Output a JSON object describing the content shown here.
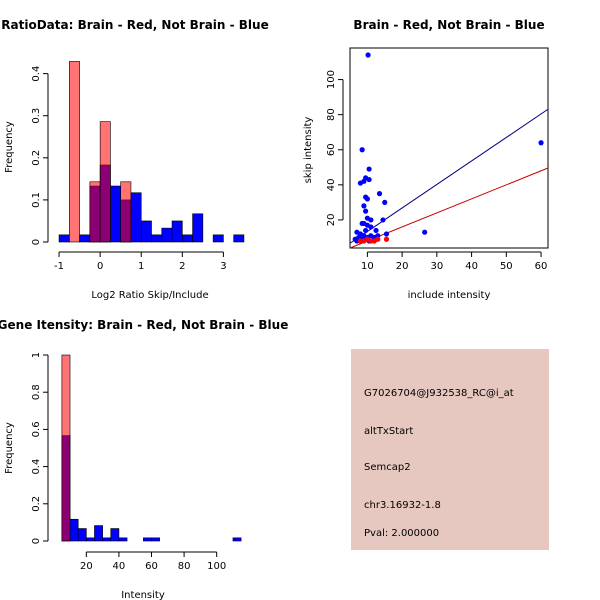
{
  "chart_data": [
    {
      "type": "histogram",
      "title": "RatioData: Brain - Red, Not Brain - Blue",
      "xlabel": "Log2 Ratio Skip/Include",
      "ylabel": "Frequency",
      "xlim": [
        -1.05,
        3.55
      ],
      "ylim": [
        0,
        0.43
      ],
      "xticks": [
        -1,
        0,
        1,
        2,
        3
      ],
      "yticks": [
        0.0,
        0.1,
        0.2,
        0.3,
        0.4
      ],
      "bin_width": 0.25,
      "series": [
        {
          "name": "Not Brain",
          "color": "#0000ff",
          "bins": [
            [
              -1.0,
              0.017
            ],
            [
              -0.5,
              0.017
            ],
            [
              -0.25,
              0.133
            ],
            [
              0.0,
              0.183
            ],
            [
              0.25,
              0.133
            ],
            [
              0.5,
              0.1
            ],
            [
              0.75,
              0.117
            ],
            [
              1.0,
              0.05
            ],
            [
              1.25,
              0.017
            ],
            [
              1.5,
              0.033
            ],
            [
              1.75,
              0.05
            ],
            [
              2.0,
              0.017
            ],
            [
              2.25,
              0.067
            ],
            [
              2.5,
              0.0
            ],
            [
              2.75,
              0.017
            ],
            [
              3.0,
              0.0
            ],
            [
              3.25,
              0.017
            ]
          ]
        },
        {
          "name": "Brain",
          "color": "#ff0000",
          "bins": [
            [
              -0.75,
              0.429
            ],
            [
              -0.25,
              0.143
            ],
            [
              0.0,
              0.286
            ],
            [
              0.5,
              0.143
            ]
          ]
        }
      ]
    },
    {
      "type": "scatter",
      "title": "Brain - Red, Not Brain - Blue",
      "xlabel": "include intensity",
      "ylabel": "skip intensity",
      "xlim": [
        5,
        62
      ],
      "ylim": [
        4,
        118
      ],
      "xticks": [
        10,
        20,
        30,
        40,
        50,
        60
      ],
      "yticks": [
        20,
        40,
        60,
        80,
        100
      ],
      "lines": [
        {
          "name": "Not Brain fit",
          "color": "#000080",
          "slope": 1.34,
          "intercept": 0
        },
        {
          "name": "Brain fit",
          "color": "#cc0000",
          "slope": 0.8,
          "intercept": 0
        }
      ],
      "series": [
        {
          "name": "Not Brain",
          "color": "#0000ff",
          "points": [
            [
              10.2,
              114
            ],
            [
              60,
              64
            ],
            [
              8.5,
              60
            ],
            [
              10.5,
              49
            ],
            [
              9.5,
              44
            ],
            [
              10.5,
              43
            ],
            [
              8,
              41
            ],
            [
              9,
              42
            ],
            [
              13.5,
              35
            ],
            [
              9.5,
              33
            ],
            [
              10,
              32
            ],
            [
              15,
              30
            ],
            [
              9,
              28
            ],
            [
              9.5,
              25
            ],
            [
              14.5,
              20
            ],
            [
              10,
              21
            ],
            [
              11,
              20
            ],
            [
              8.5,
              18
            ],
            [
              9,
              18
            ],
            [
              10,
              17
            ],
            [
              11,
              16
            ],
            [
              9.5,
              14
            ],
            [
              12.5,
              14
            ],
            [
              26.5,
              13
            ],
            [
              7,
              13
            ],
            [
              8,
              12
            ],
            [
              9,
              11
            ],
            [
              10,
              10
            ],
            [
              11,
              11
            ],
            [
              12,
              10
            ],
            [
              13,
              11
            ],
            [
              15.5,
              12
            ],
            [
              7.5,
              10
            ],
            [
              8.5,
              9
            ],
            [
              9.5,
              9
            ],
            [
              10.5,
              8
            ],
            [
              6.5,
              9
            ],
            [
              7,
              8
            ]
          ]
        },
        {
          "name": "Brain",
          "color": "#ff0000",
          "points": [
            [
              8,
              8
            ],
            [
              9,
              8
            ],
            [
              10,
              9
            ],
            [
              11,
              8
            ],
            [
              12,
              8
            ],
            [
              13,
              9
            ],
            [
              15.5,
              9
            ]
          ]
        }
      ]
    },
    {
      "type": "histogram",
      "title": "Gene Itensity: Brain - Red, Not Brain - Blue",
      "xlabel": "Intensity",
      "ylabel": "Frequency",
      "xlim": [
        2,
        118
      ],
      "ylim": [
        0,
        1.0
      ],
      "xticks": [
        20,
        40,
        60,
        80,
        100
      ],
      "yticks": [
        0.0,
        0.2,
        0.4,
        0.6,
        0.8,
        1.0
      ],
      "bin_width": 5,
      "series": [
        {
          "name": "Not Brain",
          "color": "#0000ff",
          "bins": [
            [
              5,
              0.567
            ],
            [
              10,
              0.117
            ],
            [
              15,
              0.067
            ],
            [
              20,
              0.017
            ],
            [
              25,
              0.083
            ],
            [
              30,
              0.017
            ],
            [
              35,
              0.067
            ],
            [
              40,
              0.017
            ],
            [
              45,
              0.0
            ],
            [
              50,
              0.0
            ],
            [
              55,
              0.017
            ],
            [
              60,
              0.017
            ],
            [
              110,
              0.017
            ]
          ]
        },
        {
          "name": "Brain",
          "color": "#ff0000",
          "bins": [
            [
              5,
              1.0
            ]
          ]
        }
      ]
    }
  ],
  "info_panel": {
    "background": "#e6c8c0",
    "probe": "G7026704@J932538_RC@i_at",
    "event_type": "altTxStart",
    "gene": "Semcap2",
    "location": "chr3.16932-1.8",
    "pval": "Pval: 2.000000",
    "pval_color": "#cc0000"
  }
}
